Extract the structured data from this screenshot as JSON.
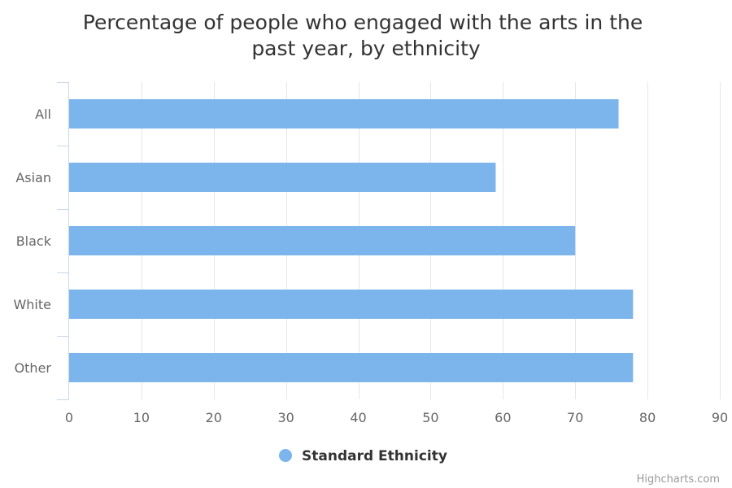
{
  "chart_data": {
    "type": "bar",
    "orientation": "horizontal",
    "title_lines": [
      "Percentage of people who engaged with the arts in the",
      "past year, by ethnicity"
    ],
    "categories": [
      "All",
      "Asian",
      "Black",
      "White",
      "Other"
    ],
    "series": [
      {
        "name": "Standard Ethnicity",
        "color": "#7cb5ec",
        "values": [
          76,
          59,
          70,
          78,
          78
        ]
      }
    ],
    "xlim": [
      0,
      90
    ],
    "x_ticks": [
      "0",
      "10",
      "20",
      "30",
      "40",
      "50",
      "60",
      "70",
      "80",
      "90"
    ],
    "grid": true,
    "legend_position": "bottom-center"
  },
  "credits": "Highcharts.com"
}
